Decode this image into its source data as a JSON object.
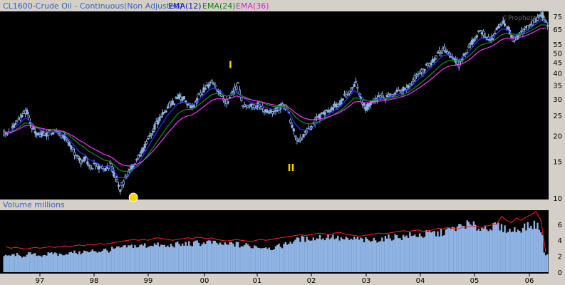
{
  "header": {
    "instrument": "CL1600-Crude Oil - Continuous(Non Adjusted)",
    "ema12": "EMA(12)",
    "ema24": "EMA(24)",
    "ema36": "EMA(36)",
    "watermark": "©Prophet.net"
  },
  "colors": {
    "background": "#000000",
    "candle": "#8fb4e6",
    "ema12": "#3030ff",
    "ema24": "#1a8a1a",
    "ema36": "#ff30ff",
    "volumeBar": "#8fb4e6",
    "openInterest": "#ff2020",
    "annotation": "#ffd200"
  },
  "chart_data": [
    {
      "type": "candlestick",
      "title": "CL1600-Crude Oil - Continuous(Non Adjusted)",
      "scale": "log",
      "ylim": [
        10,
        78
      ],
      "yticks": [
        "75",
        "65",
        "55",
        "50",
        "45",
        "40",
        "35",
        "30",
        "25",
        "20",
        "15",
        "10"
      ],
      "yticks_values": [
        75,
        65,
        55,
        50,
        45,
        40,
        35,
        30,
        25,
        20,
        15,
        10
      ],
      "xticks": [
        "97",
        "98",
        "99",
        "00",
        "01",
        "02",
        "03",
        "04",
        "05",
        "06"
      ],
      "annotations": [
        {
          "label": "I",
          "month_index": 46,
          "price": 38.5
        },
        {
          "label": "II",
          "month_index": 58,
          "price": 15.8
        },
        {
          "label": "",
          "month_index": 26,
          "price": 10.0,
          "shape": "circle"
        }
      ],
      "monthly_close": [
        20.5,
        21.5,
        23.5,
        25.0,
        26.0,
        22.0,
        20.0,
        20.5,
        20.2,
        20.8,
        21.0,
        20.0,
        19.5,
        17.5,
        16.0,
        15.0,
        15.5,
        14.0,
        14.5,
        14.0,
        13.5,
        14.5,
        12.5,
        11.0,
        12.5,
        13.5,
        15.0,
        16.0,
        18.0,
        20.0,
        22.0,
        24.0,
        26.0,
        28.0,
        29.0,
        31.0,
        30.0,
        28.0,
        27.0,
        31.0,
        33.0,
        35.0,
        36.0,
        33.0,
        30.0,
        29.0,
        33.0,
        35.0,
        27.5,
        28.0,
        27.5,
        28.0,
        27.0,
        26.5,
        26.0,
        26.5,
        28.0,
        27.0,
        22.0,
        19.0,
        19.5,
        21.0,
        22.0,
        24.0,
        25.0,
        26.0,
        27.0,
        28.0,
        29.0,
        31.5,
        33.5,
        36.0,
        30.0,
        27.0,
        28.5,
        30.0,
        31.0,
        30.5,
        31.0,
        32.0,
        32.5,
        33.5,
        35.0,
        38.0,
        40.0,
        42.0,
        44.0,
        47.0,
        50.0,
        52.0,
        50.0,
        47.0,
        44.0,
        48.0,
        53.0,
        58.0,
        63.0,
        62.0,
        58.0,
        60.0,
        66.0,
        70.0,
        65.0,
        58.0,
        60.0,
        63.0,
        66.0,
        70.0,
        73.0,
        76.0,
        68.0
      ],
      "ema_series": [
        {
          "name": "EMA(12)",
          "color": "#3030ff"
        },
        {
          "name": "EMA(24)",
          "color": "#1a8a1a"
        },
        {
          "name": "EMA(36)",
          "color": "#ff30ff"
        }
      ]
    },
    {
      "type": "bar",
      "title": "Volume  millions",
      "ylim": [
        0,
        7.5
      ],
      "yticks": [
        "6",
        "4",
        "2",
        "0"
      ],
      "yticks_values": [
        6,
        4,
        2,
        0
      ],
      "volume": [
        2.0,
        2.1,
        2.2,
        2.0,
        2.1,
        2.3,
        2.2,
        2.1,
        2.2,
        2.3,
        2.4,
        2.2,
        2.3,
        2.4,
        2.5,
        2.4,
        2.6,
        2.5,
        2.7,
        2.6,
        2.8,
        2.7,
        2.9,
        3.0,
        3.1,
        3.2,
        3.3,
        3.2,
        3.4,
        3.3,
        3.5,
        3.4,
        3.3,
        3.2,
        3.4,
        3.5,
        3.4,
        3.6,
        3.5,
        3.7,
        3.6,
        3.8,
        3.7,
        3.6,
        3.5,
        3.4,
        3.6,
        3.5,
        3.3,
        3.4,
        3.2,
        3.3,
        3.1,
        3.2,
        3.0,
        3.1,
        3.3,
        3.5,
        3.8,
        4.0,
        4.2,
        4.1,
        4.3,
        4.2,
        4.4,
        4.3,
        4.5,
        4.4,
        4.2,
        4.1,
        4.0,
        4.2,
        4.1,
        4.0,
        3.9,
        4.0,
        4.1,
        4.2,
        4.3,
        4.4,
        4.5,
        4.4,
        4.6,
        4.5,
        4.7,
        4.6,
        4.8,
        4.9,
        4.8,
        5.0,
        5.2,
        5.4,
        5.6,
        5.8,
        6.0,
        5.8,
        5.6,
        5.5,
        5.7,
        5.6,
        5.8,
        5.5,
        5.4,
        5.2,
        5.3,
        5.5,
        5.7,
        5.8,
        6.0,
        5.0,
        2.3
      ],
      "open_interest": [
        3.2,
        3.0,
        3.1,
        3.0,
        2.9,
        3.0,
        3.1,
        3.0,
        3.1,
        3.2,
        3.1,
        3.2,
        3.3,
        3.2,
        3.3,
        3.4,
        3.3,
        3.5,
        3.4,
        3.6,
        3.5,
        3.6,
        3.7,
        3.8,
        3.9,
        4.0,
        4.1,
        4.0,
        4.1,
        4.0,
        4.2,
        4.3,
        4.2,
        4.1,
        4.0,
        4.1,
        4.2,
        4.3,
        4.2,
        4.4,
        4.3,
        4.2,
        4.3,
        4.1,
        4.0,
        3.9,
        4.0,
        4.1,
        4.0,
        3.9,
        3.8,
        4.0,
        4.1,
        4.0,
        4.1,
        4.2,
        4.3,
        4.4,
        4.5,
        4.6,
        4.7,
        4.6,
        4.7,
        4.8,
        4.9,
        4.8,
        4.7,
        4.9,
        5.0,
        4.8,
        4.7,
        4.6,
        4.5,
        4.6,
        4.7,
        4.8,
        4.9,
        4.8,
        4.9,
        5.0,
        5.1,
        5.2,
        5.1,
        5.2,
        5.3,
        5.1,
        5.2,
        5.3,
        5.5,
        5.4,
        5.6,
        5.5,
        5.4,
        5.6,
        5.7,
        5.8,
        5.7,
        5.6,
        5.8,
        5.9,
        6.0,
        7.0,
        6.5,
        6.2,
        6.8,
        6.5,
        6.9,
        7.2,
        7.6,
        6.5,
        2.5
      ]
    }
  ]
}
